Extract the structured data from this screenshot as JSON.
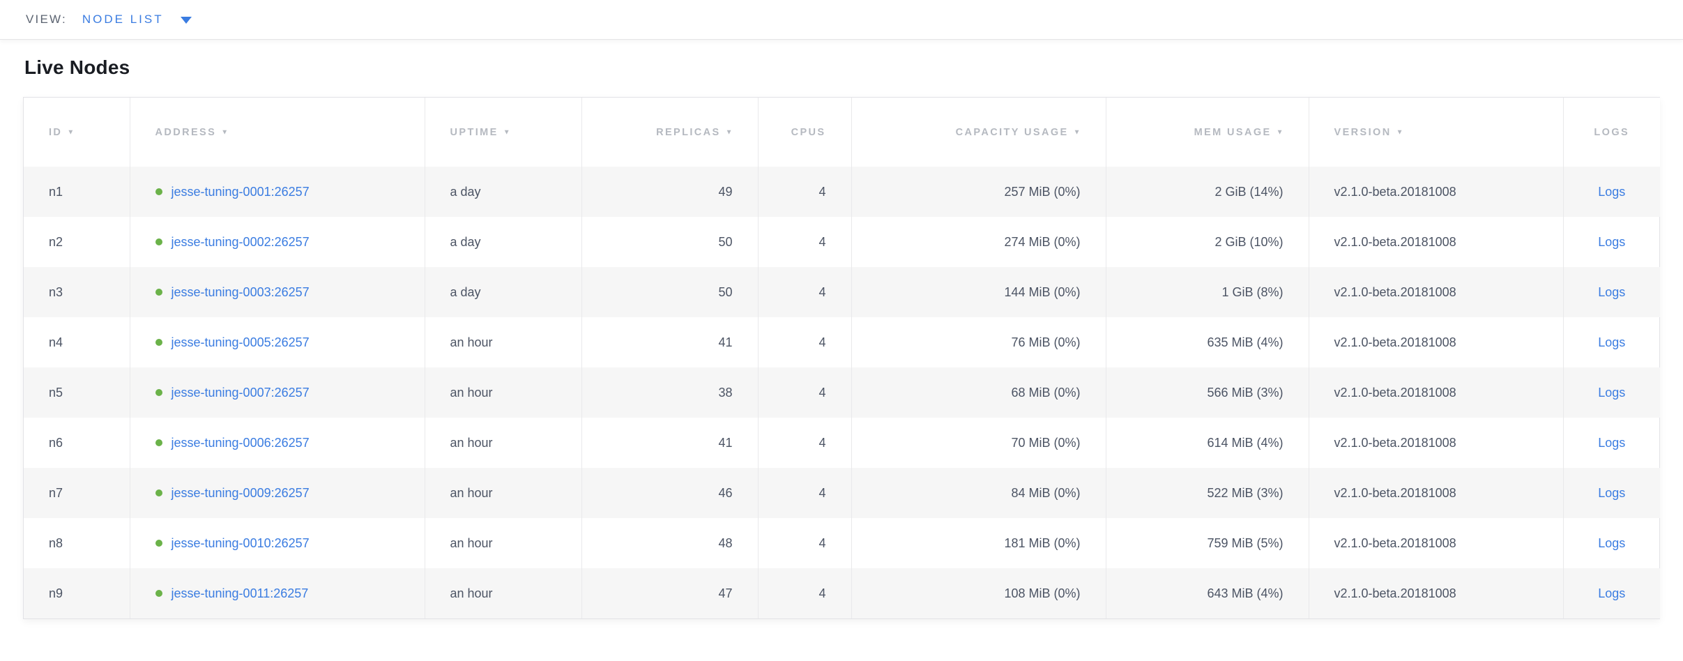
{
  "colors": {
    "accent-blue": "#3a7ce1",
    "healthy-green": "#6bb249",
    "header-gray": "#b5b9c0",
    "body-text": "#4c5464",
    "title-text": "#191c22",
    "view-label": "#5b6370",
    "row-stripe": "#f6f6f6",
    "table-border": "#e2e2e6",
    "col-divider": "#e9e9eb"
  },
  "view_bar": {
    "label": "VIEW:",
    "selected": "NODE LIST",
    "dropdown_icon": "caret-down-icon"
  },
  "page": {
    "title": "Live Nodes"
  },
  "table": {
    "columns": [
      {
        "key": "id",
        "label": "ID",
        "sortable": true,
        "align": "left"
      },
      {
        "key": "address",
        "label": "ADDRESS",
        "sortable": true,
        "align": "left"
      },
      {
        "key": "uptime",
        "label": "UPTIME",
        "sortable": true,
        "align": "left"
      },
      {
        "key": "replicas",
        "label": "REPLICAS",
        "sortable": true,
        "align": "right"
      },
      {
        "key": "cpus",
        "label": "CPUS",
        "sortable": false,
        "align": "right"
      },
      {
        "key": "capacity_usage",
        "label": "CAPACITY USAGE",
        "sortable": true,
        "align": "right"
      },
      {
        "key": "mem_usage",
        "label": "MEM USAGE",
        "sortable": true,
        "align": "right"
      },
      {
        "key": "version",
        "label": "VERSION",
        "sortable": true,
        "align": "left"
      },
      {
        "key": "logs",
        "label": "LOGS",
        "sortable": false,
        "align": "center"
      }
    ],
    "sort_arrow_glyph": "▼",
    "health_status": "healthy",
    "rows": [
      {
        "id": "n1",
        "address": "jesse-tuning-0001:26257",
        "uptime": "a day",
        "replicas": "49",
        "cpus": "4",
        "capacity_usage": "257 MiB (0%)",
        "mem_usage": "2 GiB (14%)",
        "version": "v2.1.0-beta.20181008",
        "logs": "Logs"
      },
      {
        "id": "n2",
        "address": "jesse-tuning-0002:26257",
        "uptime": "a day",
        "replicas": "50",
        "cpus": "4",
        "capacity_usage": "274 MiB (0%)",
        "mem_usage": "2 GiB (10%)",
        "version": "v2.1.0-beta.20181008",
        "logs": "Logs"
      },
      {
        "id": "n3",
        "address": "jesse-tuning-0003:26257",
        "uptime": "a day",
        "replicas": "50",
        "cpus": "4",
        "capacity_usage": "144 MiB (0%)",
        "mem_usage": "1 GiB (8%)",
        "version": "v2.1.0-beta.20181008",
        "logs": "Logs"
      },
      {
        "id": "n4",
        "address": "jesse-tuning-0005:26257",
        "uptime": "an hour",
        "replicas": "41",
        "cpus": "4",
        "capacity_usage": "76 MiB (0%)",
        "mem_usage": "635 MiB (4%)",
        "version": "v2.1.0-beta.20181008",
        "logs": "Logs"
      },
      {
        "id": "n5",
        "address": "jesse-tuning-0007:26257",
        "uptime": "an hour",
        "replicas": "38",
        "cpus": "4",
        "capacity_usage": "68 MiB (0%)",
        "mem_usage": "566 MiB (3%)",
        "version": "v2.1.0-beta.20181008",
        "logs": "Logs"
      },
      {
        "id": "n6",
        "address": "jesse-tuning-0006:26257",
        "uptime": "an hour",
        "replicas": "41",
        "cpus": "4",
        "capacity_usage": "70 MiB (0%)",
        "mem_usage": "614 MiB (4%)",
        "version": "v2.1.0-beta.20181008",
        "logs": "Logs"
      },
      {
        "id": "n7",
        "address": "jesse-tuning-0009:26257",
        "uptime": "an hour",
        "replicas": "46",
        "cpus": "4",
        "capacity_usage": "84 MiB (0%)",
        "mem_usage": "522 MiB (3%)",
        "version": "v2.1.0-beta.20181008",
        "logs": "Logs"
      },
      {
        "id": "n8",
        "address": "jesse-tuning-0010:26257",
        "uptime": "an hour",
        "replicas": "48",
        "cpus": "4",
        "capacity_usage": "181 MiB (0%)",
        "mem_usage": "759 MiB (5%)",
        "version": "v2.1.0-beta.20181008",
        "logs": "Logs"
      },
      {
        "id": "n9",
        "address": "jesse-tuning-0011:26257",
        "uptime": "an hour",
        "replicas": "47",
        "cpus": "4",
        "capacity_usage": "108 MiB (0%)",
        "mem_usage": "643 MiB (4%)",
        "version": "v2.1.0-beta.20181008",
        "logs": "Logs"
      }
    ]
  }
}
